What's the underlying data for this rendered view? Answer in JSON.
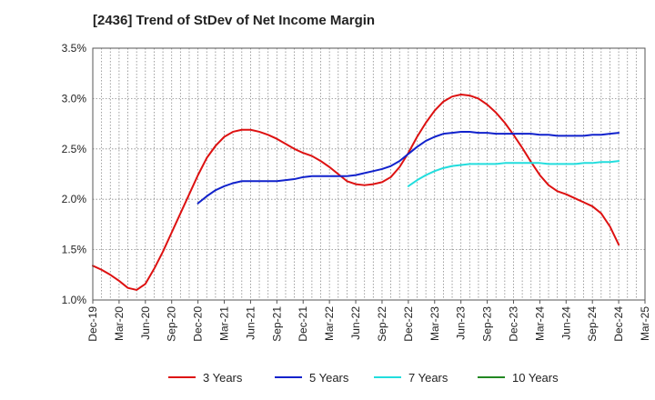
{
  "chart_data": {
    "type": "line",
    "title": "[2436]  Trend of StDev of Net Income Margin",
    "xlabel": "",
    "ylabel": "",
    "x_tick_labels": [
      "Dec-19",
      "Mar-20",
      "Jun-20",
      "Sep-20",
      "Dec-20",
      "Mar-21",
      "Jun-21",
      "Sep-21",
      "Dec-21",
      "Mar-22",
      "Jun-22",
      "Sep-22",
      "Dec-22",
      "Mar-23",
      "Jun-23",
      "Sep-23",
      "Dec-23",
      "Mar-24",
      "Jun-24",
      "Sep-24",
      "Dec-24",
      "Mar-25"
    ],
    "y_tick_labels": [
      "1.0%",
      "1.5%",
      "2.0%",
      "2.5%",
      "3.0%",
      "3.5%"
    ],
    "ylim": [
      1.0,
      3.5
    ],
    "y_unit": "%",
    "grid": true,
    "legend_position": "bottom",
    "series": [
      {
        "name": "3 Years",
        "color": "#dd1111",
        "points": [
          [
            "Dec-19",
            1.34
          ],
          [
            "Jan-20",
            1.3
          ],
          [
            "Feb-20",
            1.25
          ],
          [
            "Mar-20",
            1.19
          ],
          [
            "Apr-20",
            1.12
          ],
          [
            "May-20",
            1.1
          ],
          [
            "Jun-20",
            1.16
          ],
          [
            "Jul-20",
            1.31
          ],
          [
            "Aug-20",
            1.48
          ],
          [
            "Sep-20",
            1.67
          ],
          [
            "Oct-20",
            1.86
          ],
          [
            "Nov-20",
            2.05
          ],
          [
            "Dec-20",
            2.24
          ],
          [
            "Jan-21",
            2.41
          ],
          [
            "Feb-21",
            2.53
          ],
          [
            "Mar-21",
            2.62
          ],
          [
            "Apr-21",
            2.67
          ],
          [
            "May-21",
            2.69
          ],
          [
            "Jun-21",
            2.69
          ],
          [
            "Jul-21",
            2.67
          ],
          [
            "Aug-21",
            2.64
          ],
          [
            "Sep-21",
            2.6
          ],
          [
            "Oct-21",
            2.55
          ],
          [
            "Nov-21",
            2.5
          ],
          [
            "Dec-21",
            2.46
          ],
          [
            "Jan-22",
            2.43
          ],
          [
            "Feb-22",
            2.38
          ],
          [
            "Mar-22",
            2.32
          ],
          [
            "Apr-22",
            2.25
          ],
          [
            "May-22",
            2.18
          ],
          [
            "Jun-22",
            2.15
          ],
          [
            "Jul-22",
            2.14
          ],
          [
            "Aug-22",
            2.15
          ],
          [
            "Sep-22",
            2.17
          ],
          [
            "Oct-22",
            2.22
          ],
          [
            "Nov-22",
            2.32
          ],
          [
            "Dec-22",
            2.46
          ],
          [
            "Jan-23",
            2.62
          ],
          [
            "Feb-23",
            2.76
          ],
          [
            "Mar-23",
            2.88
          ],
          [
            "Apr-23",
            2.97
          ],
          [
            "May-23",
            3.02
          ],
          [
            "Jun-23",
            3.04
          ],
          [
            "Jul-23",
            3.03
          ],
          [
            "Aug-23",
            3.0
          ],
          [
            "Sep-23",
            2.94
          ],
          [
            "Oct-23",
            2.86
          ],
          [
            "Nov-23",
            2.76
          ],
          [
            "Dec-23",
            2.64
          ],
          [
            "Jan-24",
            2.51
          ],
          [
            "Feb-24",
            2.37
          ],
          [
            "Mar-24",
            2.24
          ],
          [
            "Apr-24",
            2.14
          ],
          [
            "May-24",
            2.08
          ],
          [
            "Jun-24",
            2.05
          ],
          [
            "Jul-24",
            2.01
          ],
          [
            "Aug-24",
            1.97
          ],
          [
            "Sep-24",
            1.93
          ],
          [
            "Oct-24",
            1.86
          ],
          [
            "Nov-24",
            1.73
          ],
          [
            "Dec-24",
            1.55
          ]
        ]
      },
      {
        "name": "5 Years",
        "color": "#1122cc",
        "points": [
          [
            "Dec-20",
            1.96
          ],
          [
            "Jan-21",
            2.03
          ],
          [
            "Feb-21",
            2.09
          ],
          [
            "Mar-21",
            2.13
          ],
          [
            "Apr-21",
            2.16
          ],
          [
            "May-21",
            2.18
          ],
          [
            "Jun-21",
            2.18
          ],
          [
            "Jul-21",
            2.18
          ],
          [
            "Aug-21",
            2.18
          ],
          [
            "Sep-21",
            2.18
          ],
          [
            "Oct-21",
            2.19
          ],
          [
            "Nov-21",
            2.2
          ],
          [
            "Dec-21",
            2.22
          ],
          [
            "Jan-22",
            2.23
          ],
          [
            "Feb-22",
            2.23
          ],
          [
            "Mar-22",
            2.23
          ],
          [
            "Apr-22",
            2.23
          ],
          [
            "May-22",
            2.23
          ],
          [
            "Jun-22",
            2.24
          ],
          [
            "Jul-22",
            2.26
          ],
          [
            "Aug-22",
            2.28
          ],
          [
            "Sep-22",
            2.3
          ],
          [
            "Oct-22",
            2.33
          ],
          [
            "Nov-22",
            2.38
          ],
          [
            "Dec-22",
            2.45
          ],
          [
            "Jan-23",
            2.52
          ],
          [
            "Feb-23",
            2.58
          ],
          [
            "Mar-23",
            2.62
          ],
          [
            "Apr-23",
            2.65
          ],
          [
            "May-23",
            2.66
          ],
          [
            "Jun-23",
            2.67
          ],
          [
            "Jul-23",
            2.67
          ],
          [
            "Aug-23",
            2.66
          ],
          [
            "Sep-23",
            2.66
          ],
          [
            "Oct-23",
            2.65
          ],
          [
            "Nov-23",
            2.65
          ],
          [
            "Dec-23",
            2.65
          ],
          [
            "Jan-24",
            2.65
          ],
          [
            "Feb-24",
            2.65
          ],
          [
            "Mar-24",
            2.64
          ],
          [
            "Apr-24",
            2.64
          ],
          [
            "May-24",
            2.63
          ],
          [
            "Jun-24",
            2.63
          ],
          [
            "Jul-24",
            2.63
          ],
          [
            "Aug-24",
            2.63
          ],
          [
            "Sep-24",
            2.64
          ],
          [
            "Oct-24",
            2.64
          ],
          [
            "Nov-24",
            2.65
          ],
          [
            "Dec-24",
            2.66
          ]
        ]
      },
      {
        "name": "7 Years",
        "color": "#22dddd",
        "points": [
          [
            "Dec-22",
            2.13
          ],
          [
            "Jan-23",
            2.19
          ],
          [
            "Feb-23",
            2.24
          ],
          [
            "Mar-23",
            2.28
          ],
          [
            "Apr-23",
            2.31
          ],
          [
            "May-23",
            2.33
          ],
          [
            "Jun-23",
            2.34
          ],
          [
            "Jul-23",
            2.35
          ],
          [
            "Aug-23",
            2.35
          ],
          [
            "Sep-23",
            2.35
          ],
          [
            "Oct-23",
            2.35
          ],
          [
            "Nov-23",
            2.36
          ],
          [
            "Dec-23",
            2.36
          ],
          [
            "Jan-24",
            2.36
          ],
          [
            "Feb-24",
            2.36
          ],
          [
            "Mar-24",
            2.36
          ],
          [
            "Apr-24",
            2.35
          ],
          [
            "May-24",
            2.35
          ],
          [
            "Jun-24",
            2.35
          ],
          [
            "Jul-24",
            2.35
          ],
          [
            "Aug-24",
            2.36
          ],
          [
            "Sep-24",
            2.36
          ],
          [
            "Oct-24",
            2.37
          ],
          [
            "Nov-24",
            2.37
          ],
          [
            "Dec-24",
            2.38
          ]
        ]
      },
      {
        "name": "10 Years",
        "color": "#228822",
        "points": []
      }
    ]
  }
}
